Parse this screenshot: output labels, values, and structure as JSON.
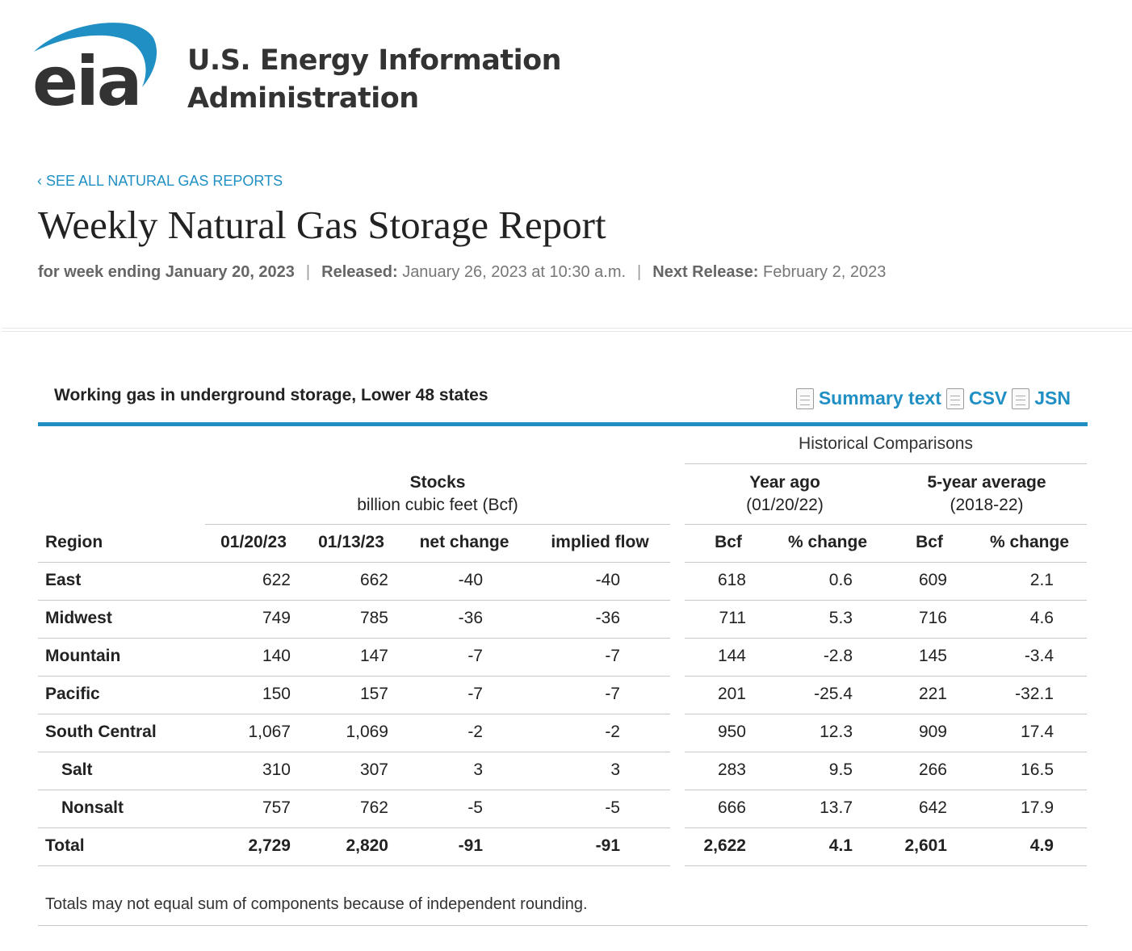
{
  "logo": {
    "mark": "eia",
    "line1": "U.S. Energy Information",
    "line2": "Administration",
    "arc_color": "#1f8fc4"
  },
  "back_link": "‹ SEE ALL NATURAL GAS REPORTS",
  "title": "Weekly Natural Gas Storage Report",
  "meta": {
    "week_label": "for week ending January 20, 2023",
    "released_label": "Released:",
    "released_value": "January 26, 2023 at 10:30 a.m.",
    "next_label": "Next Release:",
    "next_value": "February 2, 2023",
    "separator": "|"
  },
  "section_title": "Working gas in underground storage, Lower 48 states",
  "downloads": [
    "Summary text",
    "CSV",
    "JSN"
  ],
  "table": {
    "historical_label": "Historical Comparisons",
    "stocks_label": "Stocks",
    "stocks_unit": "billion cubic feet (Bcf)",
    "year_ago_label": "Year ago",
    "year_ago_date": "(01/20/22)",
    "five_year_label": "5-year average",
    "five_year_range": "(2018-22)",
    "columns": [
      "Region",
      "01/20/23",
      "01/13/23",
      "net change",
      "implied flow",
      "Bcf",
      "% change",
      "Bcf",
      "% change"
    ],
    "rows": [
      [
        "East",
        "622",
        "662",
        "-40",
        "-40",
        "618",
        "0.6",
        "609",
        "2.1"
      ],
      [
        "Midwest",
        "749",
        "785",
        "-36",
        "-36",
        "711",
        "5.3",
        "716",
        "4.6"
      ],
      [
        "Mountain",
        "140",
        "147",
        "-7",
        "-7",
        "144",
        "-2.8",
        "145",
        "-3.4"
      ],
      [
        "Pacific",
        "150",
        "157",
        "-7",
        "-7",
        "201",
        "-25.4",
        "221",
        "-32.1"
      ],
      [
        "South Central",
        "1,067",
        "1,069",
        "-2",
        "-2",
        "950",
        "12.3",
        "909",
        "17.4"
      ],
      [
        "Salt",
        "310",
        "307",
        "3",
        "3",
        "283",
        "9.5",
        "266",
        "16.5"
      ],
      [
        "Nonsalt",
        "757",
        "762",
        "-5",
        "-5",
        "666",
        "13.7",
        "642",
        "17.9"
      ],
      [
        "Total",
        "2,729",
        "2,820",
        "-91",
        "-91",
        "2,622",
        "4.1",
        "2,601",
        "4.9"
      ]
    ]
  },
  "footnote": "Totals may not equal sum of components because of independent rounding."
}
